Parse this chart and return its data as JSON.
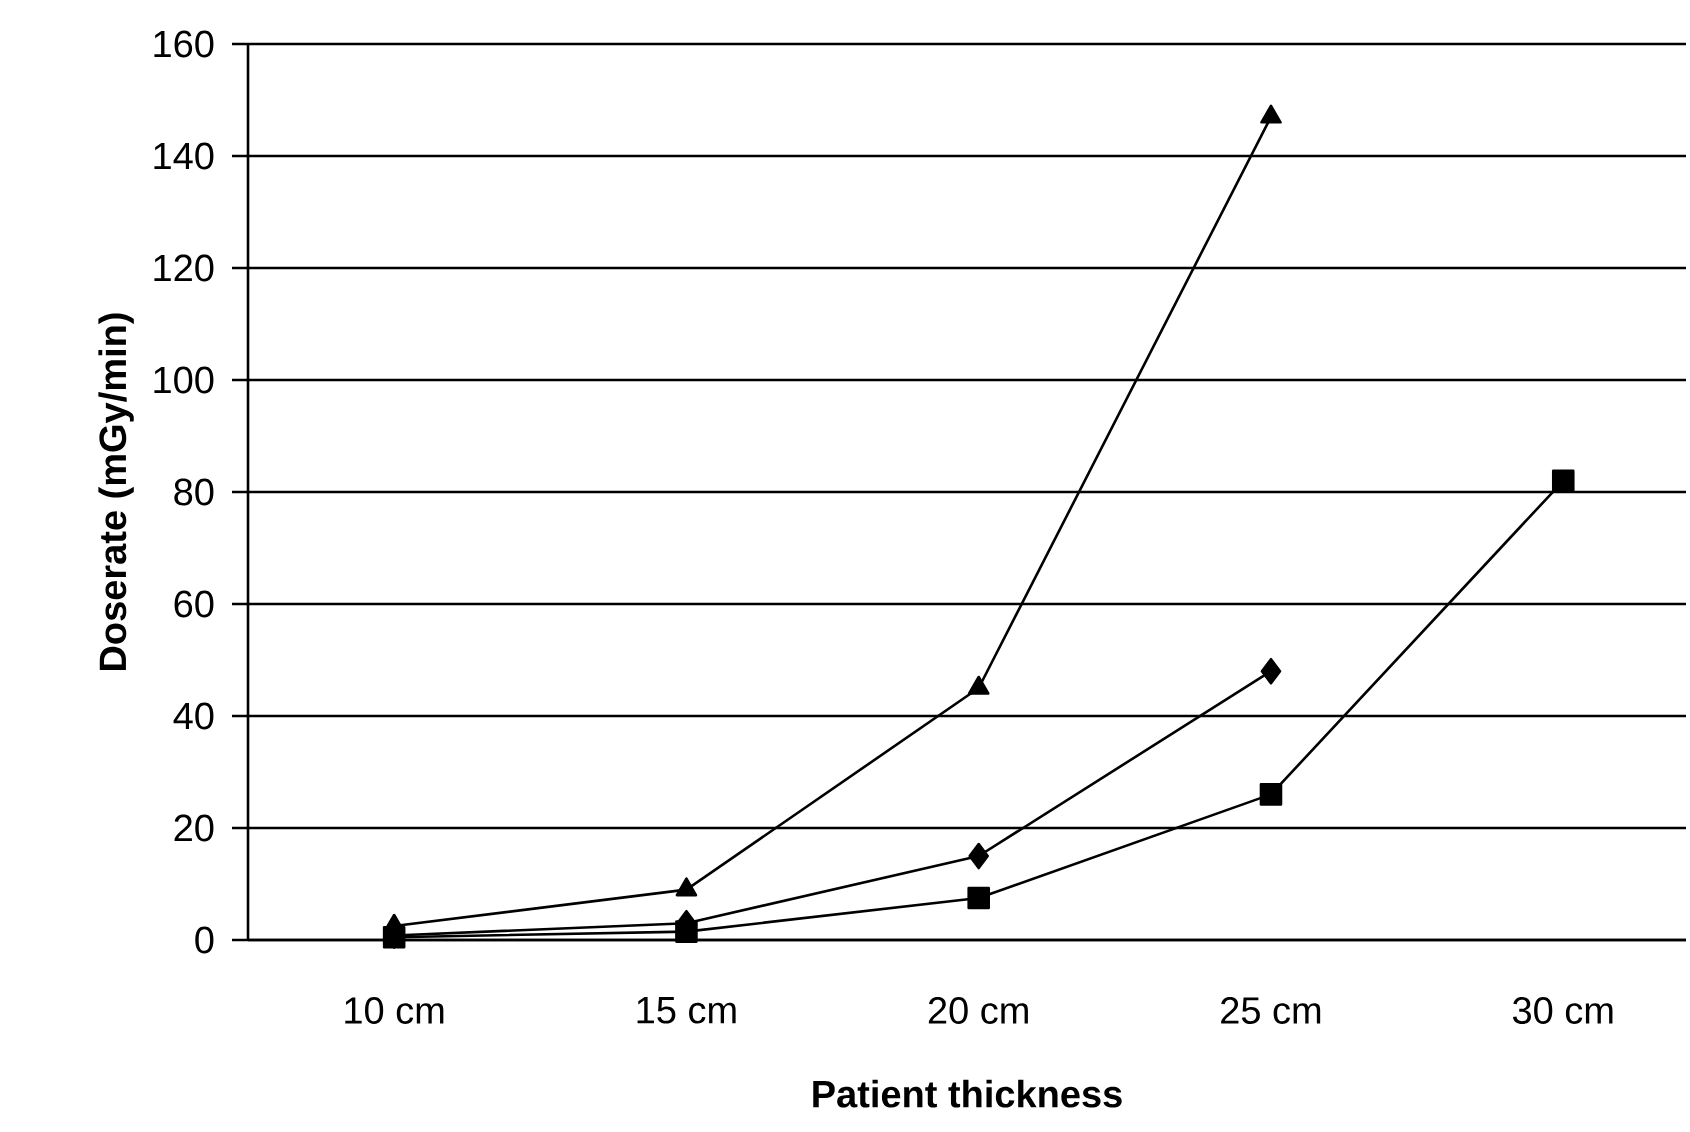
{
  "chart_data": {
    "type": "line",
    "xlabel": "Patient thickness",
    "ylabel": "Doserate (mGy/min)",
    "categories": [
      "10 cm",
      "15 cm",
      "20 cm",
      "25 cm",
      "30 cm"
    ],
    "series": [
      {
        "color": "#000000",
        "marker": "triangle",
        "values": [
          2.5,
          9,
          45,
          147,
          null
        ]
      },
      {
        "color": "#000000",
        "marker": "diamond",
        "values": [
          0.8,
          3,
          15,
          48,
          null
        ]
      },
      {
        "color": "#000000",
        "marker": "square",
        "values": [
          0.5,
          1.5,
          7.5,
          26,
          82
        ]
      }
    ],
    "ylim": [
      0,
      160
    ],
    "yticks": [
      0,
      20,
      40,
      60,
      80,
      100,
      120,
      140,
      160
    ],
    "grid": "y"
  }
}
